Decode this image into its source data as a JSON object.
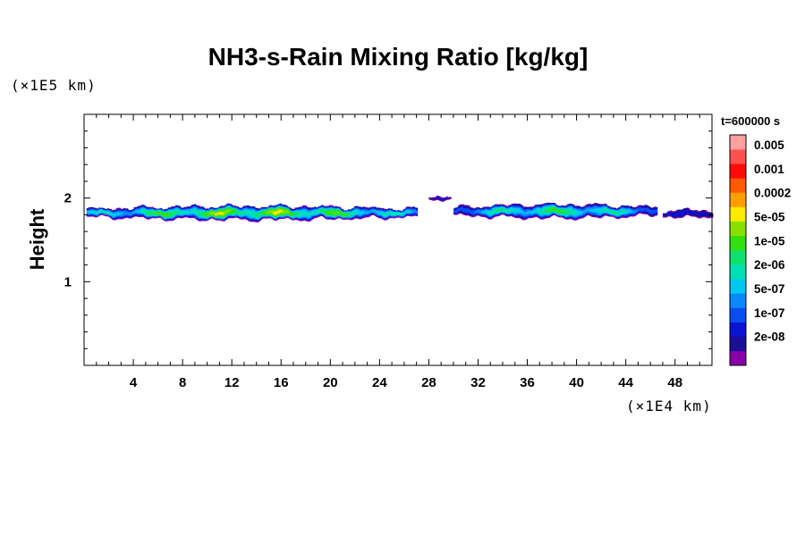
{
  "chart_data": {
    "type": "heatmap",
    "title": "NH3-s-Rain Mixing Ratio [kg/kg]",
    "ylabel": "Height",
    "xlabel": "",
    "x_unit": "(×1E4 km)",
    "y_unit": "(×1E5 km)",
    "time_label": "t=600000 s",
    "xlim": [
      0,
      51
    ],
    "ylim": [
      0,
      3
    ],
    "x_ticks": [
      4,
      8,
      12,
      16,
      20,
      24,
      28,
      32,
      36,
      40,
      44,
      48
    ],
    "x_tick_labels": [
      "4",
      "8",
      "12",
      "16",
      "20",
      "24",
      "28",
      "32",
      "36",
      "40",
      "44",
      "48"
    ],
    "y_ticks": [
      1,
      2
    ],
    "y_tick_labels": [
      "1",
      "2"
    ],
    "colorbar": {
      "labels": [
        "0.005",
        "0.001",
        "0.0002",
        "5e-05",
        "1e-05",
        "2e-06",
        "5e-07",
        "1e-07",
        "2e-08"
      ],
      "colors": [
        "#8a00a8",
        "#1a0f96",
        "#0a14d2",
        "#0a4ef0",
        "#0a88ff",
        "#00c8f0",
        "#00e0b4",
        "#10e070",
        "#30e010",
        "#88e000",
        "#ffea00",
        "#ffa000",
        "#ff5a00",
        "#ff0a0a",
        "#ff5050",
        "#ffa0a0"
      ]
    },
    "cloud_segments": [
      {
        "x_start": 0.2,
        "x_end": 27.0,
        "y_center": 1.82,
        "y_half_thickness": 0.09,
        "peak_level": 10
      },
      {
        "x_start": 28.0,
        "x_end": 29.8,
        "y_center": 2.0,
        "y_half_thickness": 0.02,
        "peak_level": 2
      },
      {
        "x_start": 30.0,
        "x_end": 46.5,
        "y_center": 1.84,
        "y_half_thickness": 0.09,
        "peak_level": 8
      },
      {
        "x_start": 47.0,
        "x_end": 51.0,
        "y_center": 1.81,
        "y_half_thickness": 0.05,
        "peak_level": 3
      }
    ]
  }
}
